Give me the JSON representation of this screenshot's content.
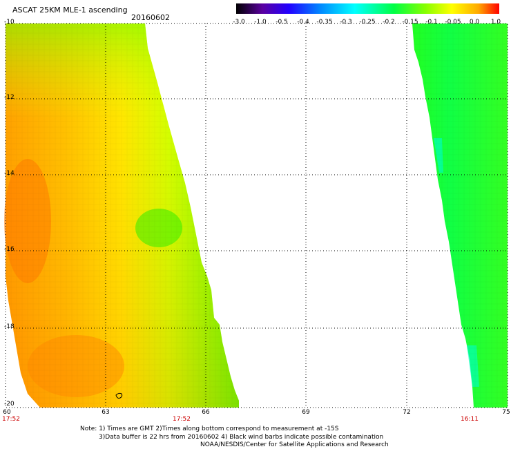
{
  "header": {
    "title": "ASCAT 25KM MLE-1 ascending",
    "date": "20160602"
  },
  "colorbar": {
    "labels": [
      "-3.0",
      "-1.0",
      "-0.5",
      "-0.4",
      "-0.35",
      "-0.3",
      "-0.25",
      "-0.2",
      "-0.15",
      "-0.1",
      "-0.05",
      "0.0",
      "1.0"
    ],
    "colors": [
      "#000000",
      "#5a00a0",
      "#0000ff",
      "#0088ff",
      "#00ffff",
      "#00ff88",
      "#00ff00",
      "#88ff00",
      "#ffff00",
      "#ffaa00",
      "#ff0000"
    ]
  },
  "map": {
    "lat_labels": [
      "-10",
      "-12",
      "-14",
      "-16",
      "-18",
      "-20"
    ],
    "lon_labels": [
      "60",
      "63",
      "66",
      "69",
      "72",
      "75"
    ],
    "lat_range": [
      -20,
      -10
    ],
    "lon_range": [
      60,
      75
    ],
    "grid": "dotted",
    "swath_colors": {
      "orange": "#ff9a00",
      "yellow": "#ffff00",
      "green": "#33ff00",
      "cyan": "#00ffaa"
    }
  },
  "times": {
    "t1": "17:52",
    "t2": "17:52",
    "t3": "16:11"
  },
  "notes": {
    "line1": "Note: 1) Times are GMT 2)Times along bottom correspond to measurement at -15S",
    "line2": "3)Data buffer is 22 hrs from 20160602 4) Black wind barbs indicate possible contamination",
    "line3": "NOAA/NESDIS/Center for Satellite Applications and Research"
  }
}
